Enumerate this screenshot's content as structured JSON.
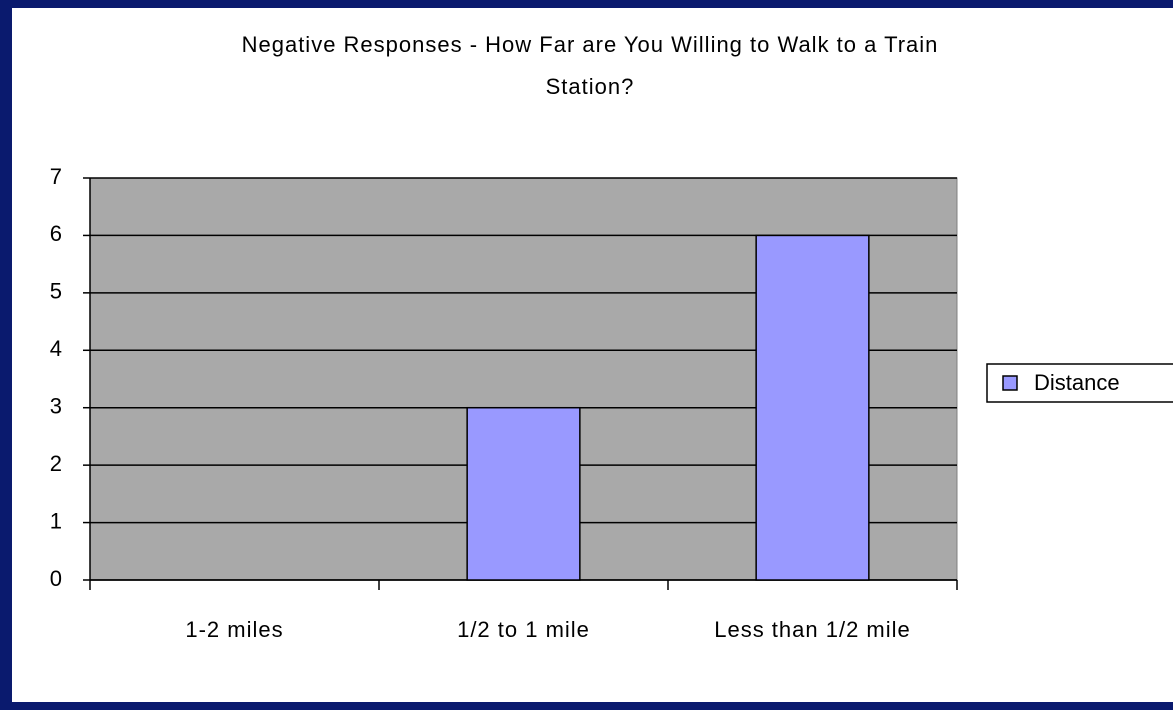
{
  "chart_data": {
    "type": "bar",
    "title": "Negative Responses - How Far are You Willing to Walk to a Train Station?",
    "categories": [
      "1-2 miles",
      "1/2 to 1 mile",
      "Less than 1/2 mile"
    ],
    "series": [
      {
        "name": "Distance",
        "color": "#9999ff",
        "values": [
          0,
          3,
          6
        ]
      }
    ],
    "ylim": [
      0,
      7
    ],
    "yticks": [
      0,
      1,
      2,
      3,
      4,
      5,
      6,
      7
    ],
    "grid": true,
    "legend": "right"
  }
}
